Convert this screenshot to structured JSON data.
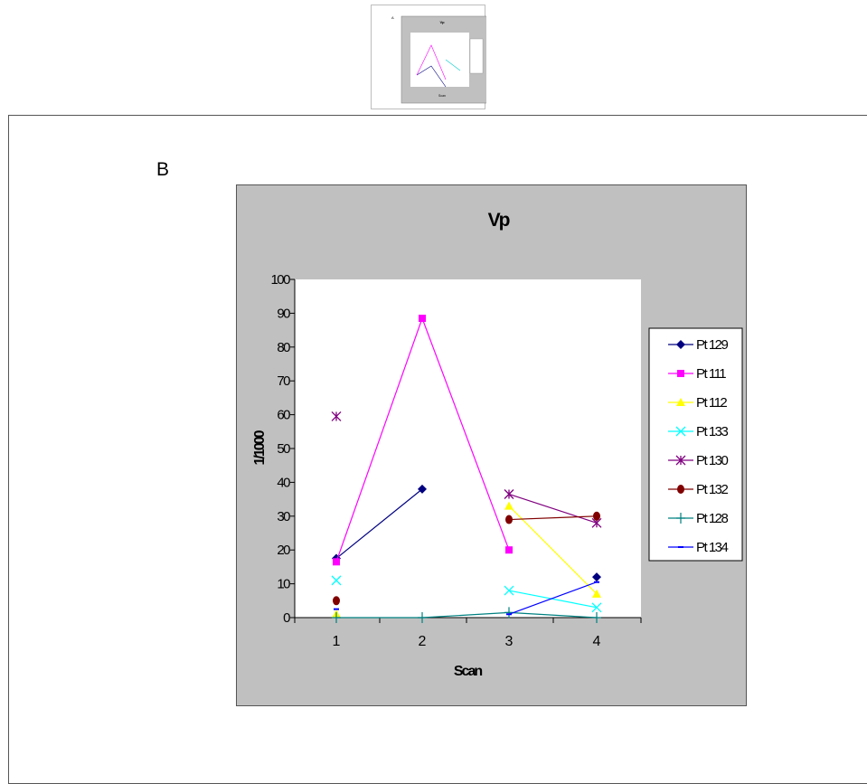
{
  "thumbnail": {
    "letter": "A",
    "title": "Vp",
    "xlabel": "Scan",
    "ylabel": "1/1000"
  },
  "panel": {
    "letter": "B"
  },
  "chart_data": {
    "type": "line",
    "title": "Vp",
    "xlabel": "Scan",
    "ylabel": "1/1000",
    "x": [
      1,
      2,
      3,
      4
    ],
    "ylim": [
      0,
      100
    ],
    "yticks": [
      0,
      10,
      20,
      30,
      40,
      50,
      60,
      70,
      80,
      90,
      100
    ],
    "grid": false,
    "legend_position": "right",
    "series": [
      {
        "name": "Pt 129",
        "color": "#000080",
        "marker": "diamond",
        "values": [
          17.5,
          38,
          null,
          12
        ]
      },
      {
        "name": "Pt 111",
        "color": "#ff00ff",
        "marker": "square",
        "values": [
          16.5,
          88.5,
          20,
          null
        ]
      },
      {
        "name": "Pt 112",
        "color": "#ffff00",
        "marker": "triangle",
        "values": [
          1,
          null,
          33,
          7
        ]
      },
      {
        "name": "Pt 133",
        "color": "#00ffff",
        "marker": "x",
        "values": [
          11,
          null,
          8,
          3
        ]
      },
      {
        "name": "Pt 130",
        "color": "#800080",
        "marker": "star",
        "values": [
          59.5,
          null,
          36.5,
          28
        ]
      },
      {
        "name": "Pt 132",
        "color": "#800000",
        "marker": "circle",
        "values": [
          5,
          null,
          29,
          30
        ]
      },
      {
        "name": "Pt 128",
        "color": "#008080",
        "marker": "plus",
        "values": [
          0,
          0,
          1.5,
          0
        ]
      },
      {
        "name": "Pt 134",
        "color": "#0000ff",
        "marker": "dash",
        "values": [
          2.5,
          null,
          1,
          10.5
        ]
      }
    ]
  }
}
